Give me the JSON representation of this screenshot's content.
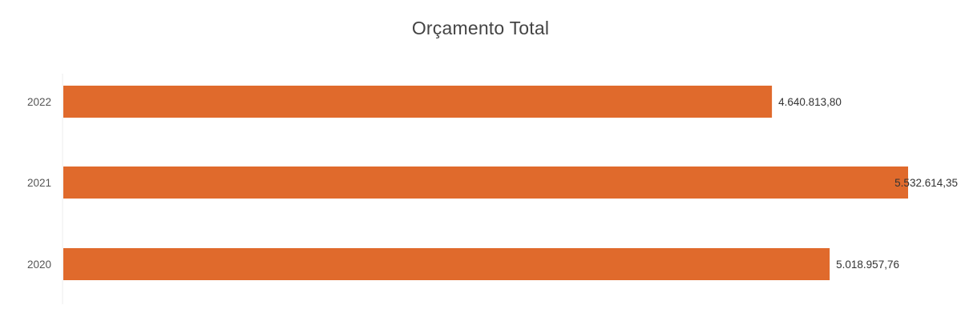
{
  "chart_data": {
    "type": "bar",
    "orientation": "horizontal",
    "title": "Orçamento Total",
    "categories": [
      "2022",
      "2021",
      "2020"
    ],
    "values": [
      4640813.8,
      5532614.35,
      5018957.76
    ],
    "value_labels": [
      "4.640.813,80",
      "5.532.614,35",
      "5.018.957,76"
    ],
    "xlim": [
      0,
      5532614.35
    ],
    "grid": false,
    "legend": "none",
    "bar_color": "#e06a2c"
  }
}
